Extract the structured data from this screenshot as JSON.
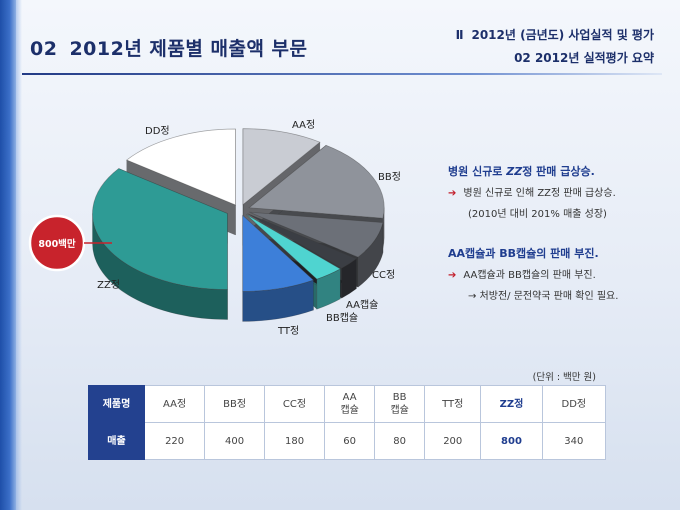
{
  "header": {
    "num": "02",
    "title": "2012년 제품별 매출액 부문",
    "right_roman": "Ⅱ",
    "right_line1": "2012년 (금년도) 사업실적 및 평가",
    "right_line2": "02  2012년 실적평가 요약"
  },
  "chart_data": {
    "type": "pie",
    "style": "3d-exploded",
    "categories": [
      "AA정",
      "BB정",
      "CC정",
      "AA캡슐",
      "BB캡슐",
      "TT정",
      "ZZ정",
      "DD정"
    ],
    "values": [
      220,
      400,
      180,
      60,
      80,
      200,
      800,
      340
    ],
    "colors": [
      "#c9ccd3",
      "#8f939b",
      "#6c7078",
      "#3b3e44",
      "#4fd4d0",
      "#3d7fd9",
      "#2e9b95",
      "#ffffff"
    ],
    "slice_labels": [
      "AA정",
      "BB정",
      "CC정",
      "AA캡슐",
      "BB캡슐",
      "TT정",
      "ZZ정",
      "DD정"
    ],
    "callout_badge": "800백만"
  },
  "callouts": [
    {
      "title_pre": "병원 신규로 ",
      "title_em": "ZZ",
      "title_post": "정 판매 급상승.",
      "lines": [
        "병원 신규로 인해 ZZ정 판매 급상승.",
        "(2010년 대비 201% 매출 성장)"
      ]
    },
    {
      "title_pre": "AA캡슐과 BB캡슐의 판매 부진.",
      "title_em": "",
      "title_post": "",
      "lines": [
        "AA캡슐과 BB캡슐의 판매 부진.",
        "→ 처방전/ 문전약국 판매 확인 필요."
      ]
    }
  ],
  "table": {
    "unit": "(단위 : 백만 원)",
    "row1_header": "제품명",
    "row2_header": "매출",
    "products": [
      "AA정",
      "BB정",
      "CC정",
      "AA\n캡슐",
      "BB\n캡슐",
      "TT정",
      "ZZ정",
      "DD정"
    ],
    "sales": [
      "220",
      "400",
      "180",
      "60",
      "80",
      "200",
      "800",
      "340"
    ],
    "highlight_index": 6
  }
}
